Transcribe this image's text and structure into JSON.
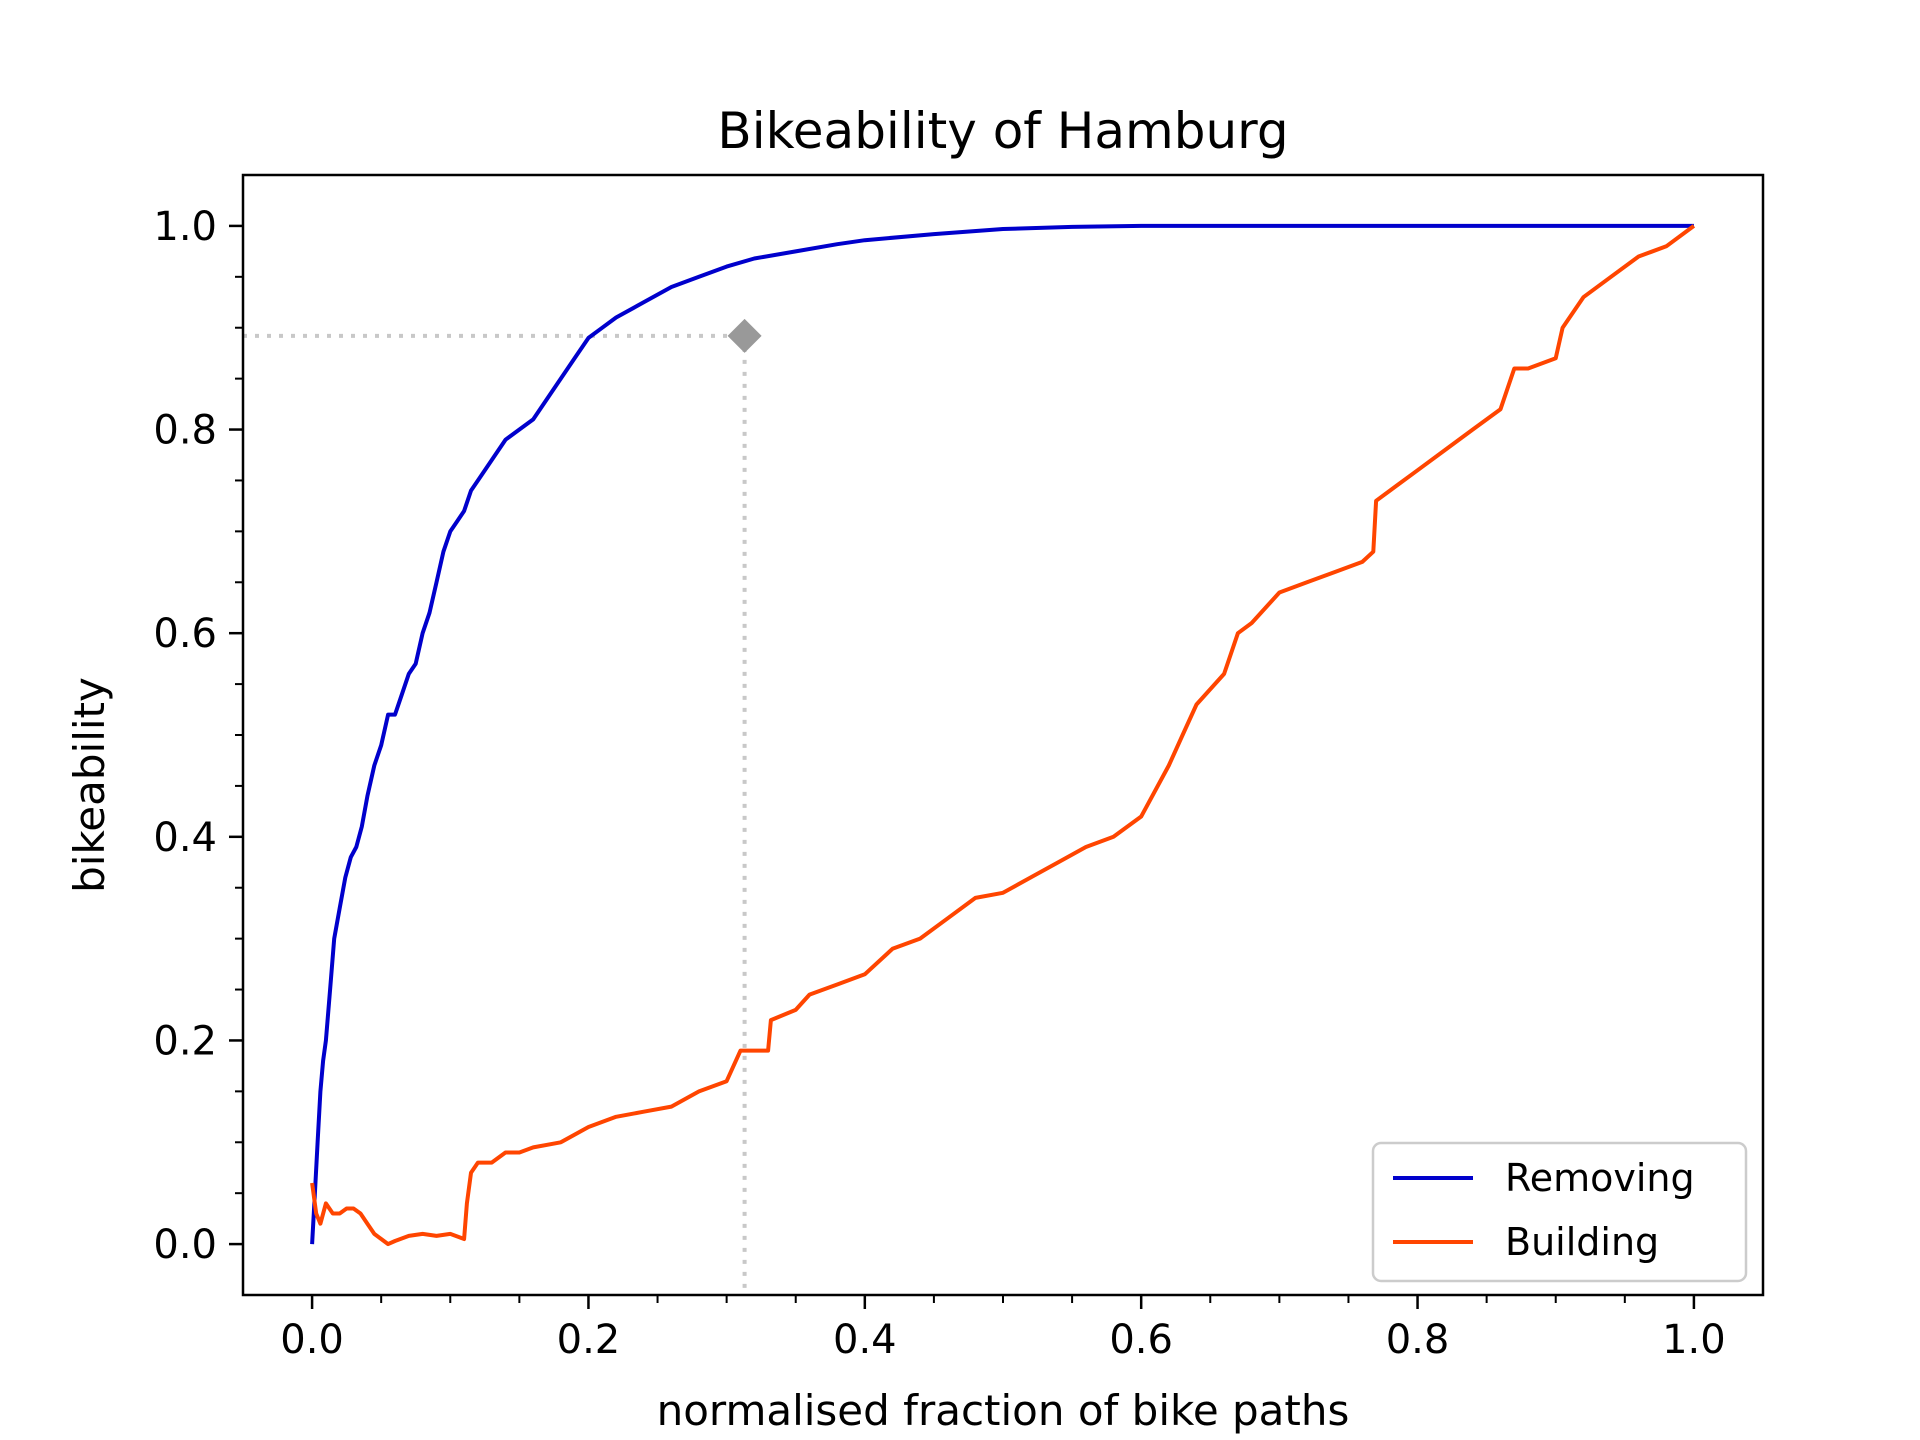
{
  "chart_data": {
    "type": "line",
    "title": "Bikeability of Hamburg",
    "xlabel": "normalised fraction of bike paths",
    "ylabel": "bikeability",
    "xlim": [
      -0.05,
      1.05
    ],
    "ylim": [
      -0.05,
      1.05
    ],
    "xticks": [
      0.0,
      0.2,
      0.4,
      0.6,
      0.8,
      1.0
    ],
    "yticks": [
      0.0,
      0.2,
      0.4,
      0.6,
      0.8,
      1.0
    ],
    "xtick_labels": [
      "0.0",
      "0.2",
      "0.4",
      "0.6",
      "0.8",
      "1.0"
    ],
    "ytick_labels": [
      "0.0",
      "0.2",
      "0.4",
      "0.6",
      "0.8",
      "1.0"
    ],
    "minor_ticks": true,
    "grid": false,
    "legend_position": "bottom-right",
    "series": [
      {
        "name": "Removing",
        "color": "#0000cc",
        "x": [
          0.0,
          0.002,
          0.004,
          0.006,
          0.008,
          0.01,
          0.013,
          0.016,
          0.02,
          0.024,
          0.028,
          0.032,
          0.036,
          0.04,
          0.045,
          0.05,
          0.055,
          0.06,
          0.065,
          0.07,
          0.075,
          0.08,
          0.085,
          0.09,
          0.095,
          0.1,
          0.105,
          0.11,
          0.115,
          0.12,
          0.13,
          0.14,
          0.15,
          0.16,
          0.17,
          0.18,
          0.19,
          0.2,
          0.21,
          0.22,
          0.24,
          0.26,
          0.28,
          0.3,
          0.32,
          0.35,
          0.38,
          0.4,
          0.45,
          0.5,
          0.55,
          0.6,
          0.7,
          0.8,
          0.9,
          1.0
        ],
        "y": [
          0.0,
          0.05,
          0.1,
          0.15,
          0.18,
          0.2,
          0.25,
          0.3,
          0.33,
          0.36,
          0.38,
          0.39,
          0.41,
          0.44,
          0.47,
          0.49,
          0.52,
          0.52,
          0.54,
          0.56,
          0.57,
          0.6,
          0.62,
          0.65,
          0.68,
          0.7,
          0.71,
          0.72,
          0.74,
          0.75,
          0.77,
          0.79,
          0.8,
          0.81,
          0.83,
          0.85,
          0.87,
          0.89,
          0.9,
          0.91,
          0.925,
          0.94,
          0.95,
          0.96,
          0.968,
          0.975,
          0.982,
          0.986,
          0.992,
          0.997,
          0.999,
          1.0,
          1.0,
          1.0,
          1.0,
          1.0
        ]
      },
      {
        "name": "Building",
        "color": "#ff4500",
        "x": [
          0.0,
          0.003,
          0.006,
          0.01,
          0.015,
          0.02,
          0.025,
          0.03,
          0.035,
          0.04,
          0.045,
          0.05,
          0.055,
          0.06,
          0.07,
          0.08,
          0.09,
          0.1,
          0.11,
          0.112,
          0.115,
          0.12,
          0.13,
          0.14,
          0.15,
          0.16,
          0.18,
          0.2,
          0.22,
          0.24,
          0.26,
          0.28,
          0.3,
          0.31,
          0.33,
          0.332,
          0.35,
          0.36,
          0.38,
          0.4,
          0.42,
          0.44,
          0.46,
          0.48,
          0.5,
          0.52,
          0.54,
          0.56,
          0.58,
          0.6,
          0.62,
          0.63,
          0.64,
          0.66,
          0.67,
          0.68,
          0.7,
          0.72,
          0.74,
          0.76,
          0.768,
          0.77,
          0.78,
          0.8,
          0.82,
          0.84,
          0.86,
          0.87,
          0.88,
          0.9,
          0.905,
          0.92,
          0.94,
          0.96,
          0.98,
          1.0
        ],
        "y": [
          0.06,
          0.03,
          0.02,
          0.04,
          0.03,
          0.03,
          0.035,
          0.035,
          0.03,
          0.02,
          0.01,
          0.005,
          0.0,
          0.003,
          0.008,
          0.01,
          0.008,
          0.01,
          0.005,
          0.04,
          0.07,
          0.08,
          0.08,
          0.09,
          0.09,
          0.095,
          0.1,
          0.115,
          0.125,
          0.13,
          0.135,
          0.15,
          0.16,
          0.19,
          0.19,
          0.22,
          0.23,
          0.245,
          0.255,
          0.265,
          0.29,
          0.3,
          0.32,
          0.34,
          0.345,
          0.36,
          0.375,
          0.39,
          0.4,
          0.42,
          0.47,
          0.5,
          0.53,
          0.56,
          0.6,
          0.61,
          0.64,
          0.65,
          0.66,
          0.67,
          0.68,
          0.73,
          0.74,
          0.76,
          0.78,
          0.8,
          0.82,
          0.86,
          0.86,
          0.87,
          0.9,
          0.93,
          0.95,
          0.97,
          0.98,
          1.0
        ]
      }
    ],
    "annotation": {
      "x": 0.313,
      "y": 0.892,
      "color": "#999999",
      "line_style": "dotted"
    }
  }
}
